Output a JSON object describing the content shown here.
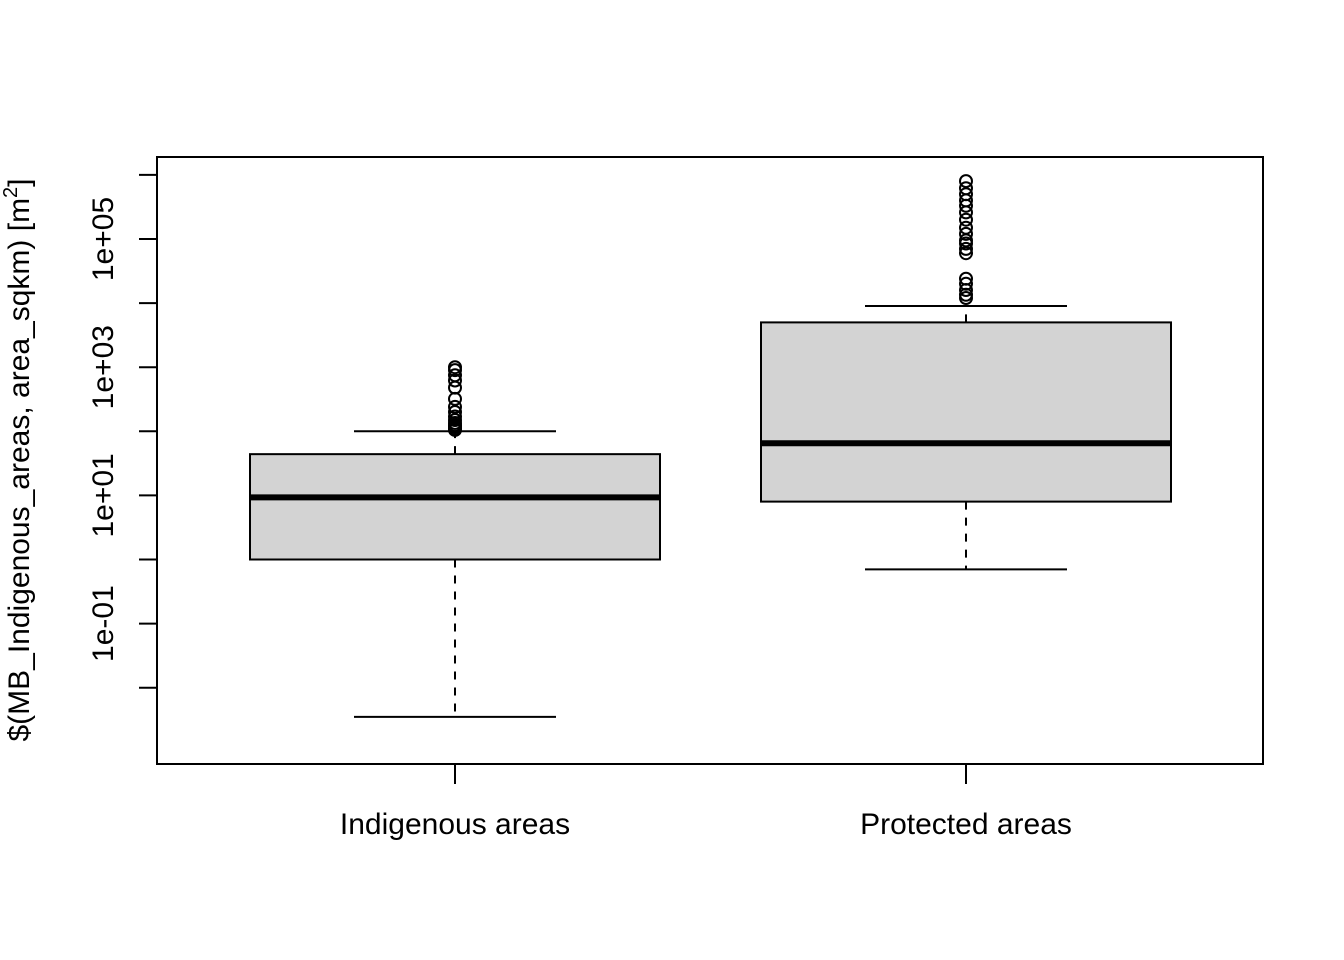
{
  "chart_data": {
    "type": "boxplot",
    "ylabel_main": "$(MB_Indigenous_areas, area_sqkm) [m",
    "ylabel_sup": "2",
    "ylabel_end": "]",
    "y_scale": "log10",
    "ylim": [
      0.003,
      1200000
    ],
    "y_ticks": [
      0.01,
      0.1,
      1,
      10,
      100,
      1000,
      10000,
      100000,
      1000000
    ],
    "y_tick_labels": [
      {
        "value": 0.1,
        "label": "1e-01"
      },
      {
        "value": 10,
        "label": "1e+01"
      },
      {
        "value": 1000,
        "label": "1e+03"
      },
      {
        "value": 100000,
        "label": "1e+05"
      }
    ],
    "categories": [
      "Indigenous areas",
      "Protected areas"
    ],
    "boxes": [
      {
        "name": "Indigenous areas",
        "whisker_low": 0.0035,
        "q1": 1.0,
        "median": 9.3,
        "q3": 44,
        "whisker_high": 100,
        "outliers": [
          105,
          110,
          118,
          125,
          135,
          150,
          170,
          200,
          240,
          320,
          480,
          620,
          750,
          900,
          1000
        ]
      },
      {
        "name": "Protected areas",
        "whisker_low": 0.7,
        "q1": 8,
        "median": 65,
        "q3": 5000,
        "whisker_high": 9000,
        "outliers": [
          12000,
          13500,
          16000,
          20000,
          24000,
          60000,
          70000,
          85000,
          95000,
          120000,
          150000,
          200000,
          260000,
          330000,
          400000,
          500000,
          620000,
          800000
        ]
      }
    ],
    "grid": false,
    "legend": "none"
  }
}
